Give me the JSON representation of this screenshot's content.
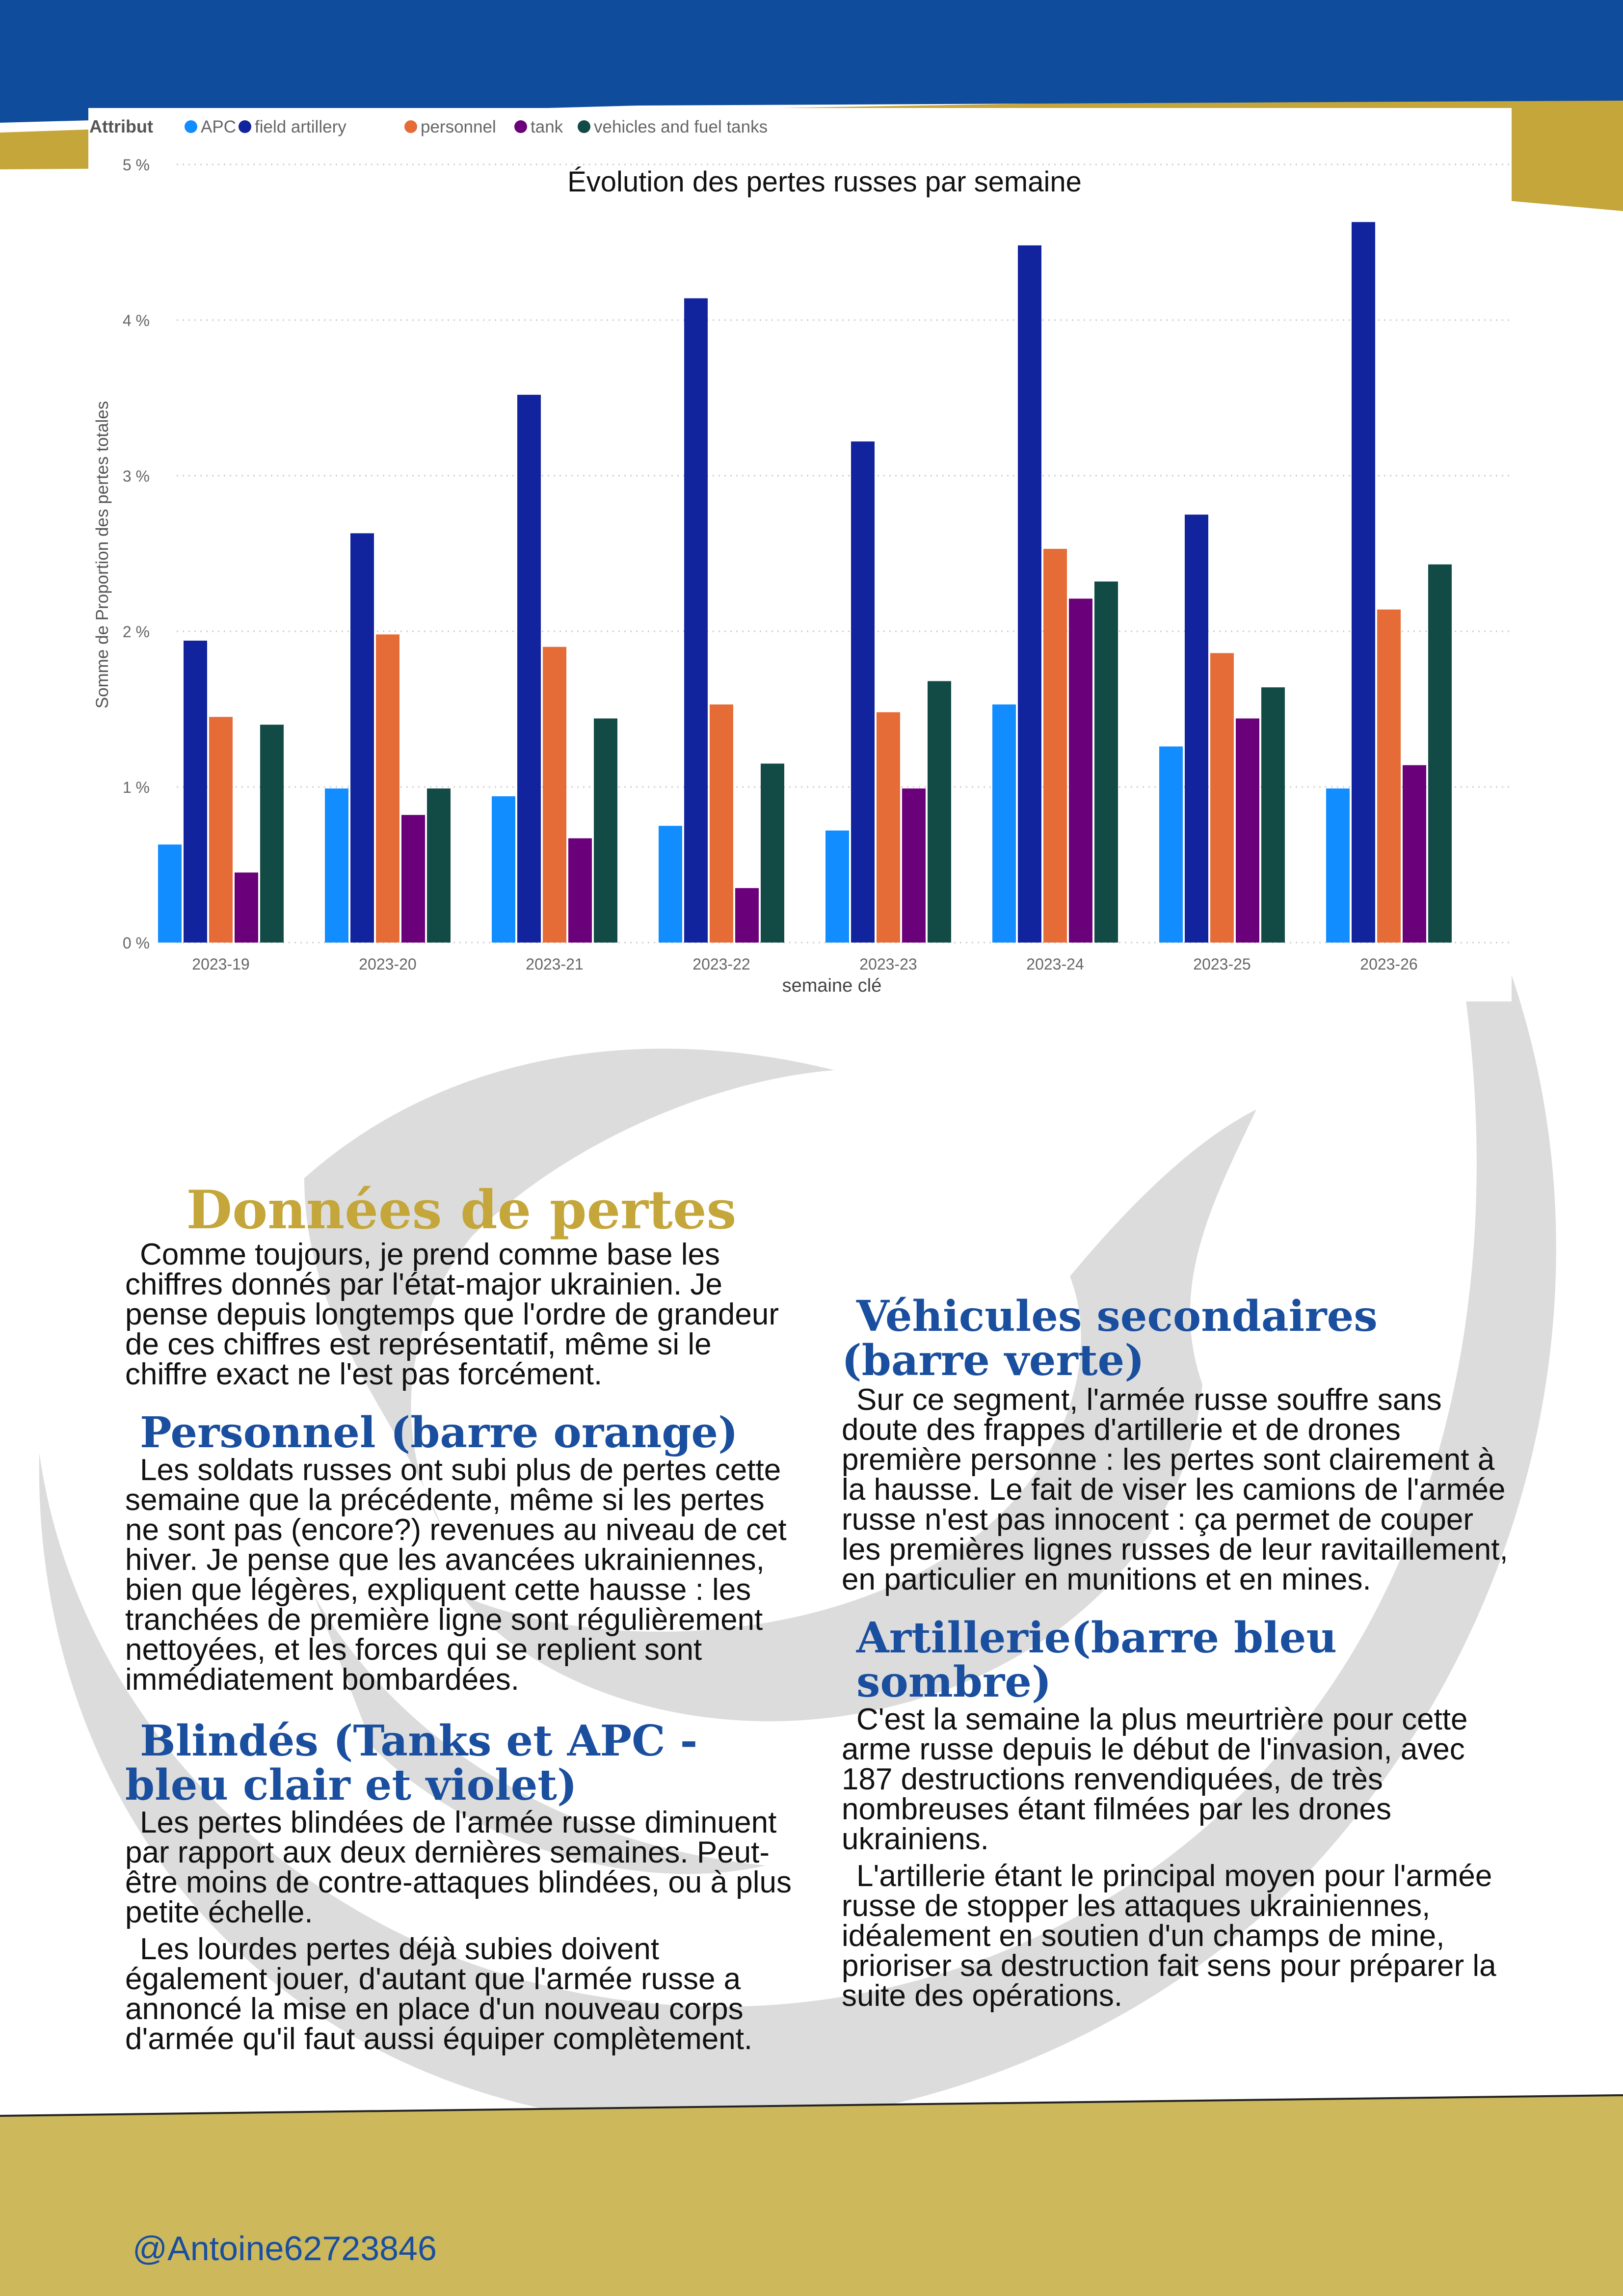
{
  "colors": {
    "header_blue": "#0f4c9b",
    "gold": "#c4a63a",
    "footer_gold": "#cdb95c",
    "heading_blue": "#1a4e9e",
    "watermark_grey": "#dcdcdc"
  },
  "chart_data": {
    "type": "bar",
    "title": "Évolution des pertes russes par semaine",
    "xlabel": "semaine clé",
    "ylabel": "Somme de Proportion des pertes totales",
    "legend_title": "Attribut",
    "legend_position": "top-left",
    "grid": true,
    "ylim": [
      0,
      5
    ],
    "yticks": [
      "0 %",
      "1 %",
      "2 %",
      "3 %",
      "4 %",
      "5 %"
    ],
    "categories": [
      "2023-19",
      "2023-20",
      "2023-21",
      "2023-22",
      "2023-23",
      "2023-24",
      "2023-25",
      "2023-26"
    ],
    "series": [
      {
        "name": "APC",
        "color": "#118dff",
        "values": [
          0.63,
          0.99,
          0.94,
          0.75,
          0.72,
          1.53,
          1.26,
          0.99
        ]
      },
      {
        "name": "field artillery",
        "color": "#12239e",
        "values": [
          1.94,
          2.63,
          3.52,
          4.14,
          3.22,
          4.48,
          2.75,
          4.63
        ]
      },
      {
        "name": "personnel",
        "color": "#e66c37",
        "values": [
          1.45,
          1.98,
          1.9,
          1.53,
          1.48,
          2.53,
          1.86,
          2.14
        ]
      },
      {
        "name": "tank",
        "color": "#6b007b",
        "values": [
          0.45,
          0.82,
          0.67,
          0.35,
          0.99,
          2.21,
          1.44,
          1.14
        ]
      },
      {
        "name": "vehicles and fuel tanks",
        "color": "#124a45",
        "values": [
          1.4,
          0.99,
          1.44,
          1.15,
          1.68,
          2.32,
          1.64,
          2.43
        ]
      }
    ]
  },
  "article": {
    "title": "Données de pertes",
    "intro": "Comme toujours, je prend comme base les chiffres donnés par l'état-major ukrainien. Je pense depuis longtemps que l'ordre de grandeur de ces chiffres est représentatif, même si le chiffre exact ne l'est pas forcément.",
    "personnel_heading": "Personnel (barre orange)",
    "personnel_text": "Les soldats russes ont subi plus de pertes cette semaine que la précédente, même si les pertes ne sont pas (encore?) revenues au niveau de cet hiver. Je pense que les avancées ukrainiennes, bien que légères, expliquent cette hausse : les tranchées de première ligne sont régulièrement nettoyées, et les forces qui se replient sont immédiatement bombardées.",
    "blindes_heading": "Blindés  (Tanks et APC - bleu clair et violet)",
    "blindes_text1": "Les pertes blindées de l'armée russe diminuent par rapport aux deux dernières semaines. Peut-être moins de contre-attaques blindées, ou à plus petite échelle.",
    "blindes_text2": "Les lourdes pertes déjà subies doivent également jouer, d'autant que l'armée russe a annoncé la mise en place d'un nouveau corps d'armée qu'il faut aussi équiper complètement.",
    "vehicules_heading": "Véhicules secondaires (barre verte)",
    "vehicules_text": "Sur ce segment, l'armée russe souffre sans doute des frappes d'artillerie et de drones première personne : les pertes sont clairement à la hausse. Le fait de viser les camions de l'armée russe n'est pas innocent : ça permet de couper les premières lignes russes de leur ravitaillement, en particulier en munitions et en mines.",
    "artillerie_heading": "Artillerie(barre bleu sombre)",
    "artillerie_text1": "C'est la semaine la plus meurtrière pour cette arme russe depuis le début de l'invasion, avec 187 destructions renvendiquées, de très nombreuses étant filmées par les drones ukrainiens.",
    "artillerie_text2": "L'artillerie étant le principal moyen pour l'armée russe de stopper les attaques ukrainiennes, idéalement en soutien d'un champs de mine, prioriser sa destruction fait sens pour préparer la suite des opérations."
  },
  "footer": {
    "handle": "@Antoine62723846"
  }
}
